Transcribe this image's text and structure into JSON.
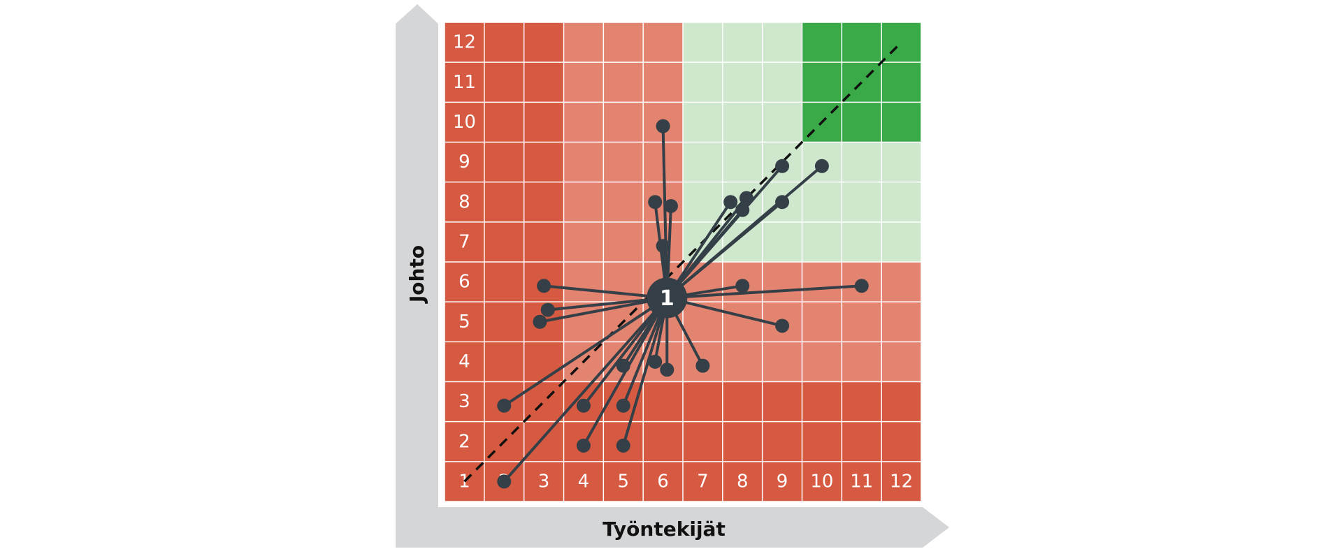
{
  "chart_data": {
    "type": "scatter",
    "title": "",
    "xlabel": "Työntekijät",
    "ylabel": "Johto",
    "xlim": [
      1,
      12
    ],
    "ylim": [
      1,
      12
    ],
    "x_ticks": [
      "1",
      "2",
      "3",
      "4",
      "5",
      "6",
      "7",
      "8",
      "9",
      "10",
      "11",
      "12"
    ],
    "y_ticks": [
      "1",
      "2",
      "3",
      "4",
      "5",
      "6",
      "7",
      "8",
      "9",
      "10",
      "11",
      "12"
    ],
    "grid": true,
    "legend": "none",
    "zone_colors": {
      "dark_red": "#d55a41",
      "light_red": "#e38470",
      "light_green": "#cee7cd",
      "dark_green": "#3aa948",
      "grid_line": "#ffffff",
      "point": "#353f47",
      "axis_arrow": "#d4d6d8"
    },
    "center": {
      "x": 6.1,
      "y": 5.6,
      "label": "1"
    },
    "diagonal": {
      "from": [
        1,
        1
      ],
      "to": [
        12,
        12
      ],
      "style": "dashed"
    },
    "points": [
      {
        "x": 6.0,
        "y": 9.9
      },
      {
        "x": 5.8,
        "y": 8.0
      },
      {
        "x": 6.2,
        "y": 7.9
      },
      {
        "x": 6.0,
        "y": 6.9
      },
      {
        "x": 7.7,
        "y": 8.0
      },
      {
        "x": 8.1,
        "y": 8.1
      },
      {
        "x": 8.0,
        "y": 7.8
      },
      {
        "x": 9.0,
        "y": 8.9
      },
      {
        "x": 9.0,
        "y": 8.0
      },
      {
        "x": 10.0,
        "y": 8.9
      },
      {
        "x": 3.0,
        "y": 5.9
      },
      {
        "x": 3.1,
        "y": 5.3
      },
      {
        "x": 2.9,
        "y": 5.0
      },
      {
        "x": 8.0,
        "y": 5.9
      },
      {
        "x": 11.0,
        "y": 5.9
      },
      {
        "x": 9.0,
        "y": 4.9
      },
      {
        "x": 7.0,
        "y": 3.9
      },
      {
        "x": 6.1,
        "y": 3.8
      },
      {
        "x": 5.8,
        "y": 4.0
      },
      {
        "x": 5.0,
        "y": 3.9
      },
      {
        "x": 2.0,
        "y": 2.9
      },
      {
        "x": 4.0,
        "y": 2.9
      },
      {
        "x": 5.0,
        "y": 2.9
      },
      {
        "x": 4.0,
        "y": 1.9
      },
      {
        "x": 5.0,
        "y": 1.9
      },
      {
        "x": 2.0,
        "y": 1.0
      }
    ]
  }
}
